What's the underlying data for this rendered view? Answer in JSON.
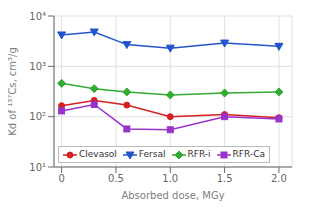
{
  "chart_data": {
    "type": "line",
    "x": [
      0,
      0.3,
      0.6,
      1.0,
      1.5,
      2.0
    ],
    "series": [
      {
        "name": "Clevasol",
        "color": "#d42020",
        "marker": "circle",
        "values": [
          165,
          210,
          170,
          100,
          110,
          95
        ]
      },
      {
        "name": "Fersal",
        "color": "#2255cc",
        "marker": "triangle-down",
        "values": [
          4200,
          4800,
          2700,
          2300,
          2900,
          2500
        ]
      },
      {
        "name": "RFR-i",
        "color": "#33aa33",
        "marker": "diamond",
        "values": [
          460,
          360,
          310,
          270,
          295,
          310
        ]
      },
      {
        "name": "RFR-Ca",
        "color": "#9933cc",
        "marker": "square",
        "values": [
          130,
          175,
          57,
          55,
          100,
          90
        ]
      }
    ],
    "xlabel": "Absorbed dose, MGy",
    "ylabel": "Kd of ¹³⁷Cs, cm³/g",
    "xlim": [
      -0.07,
      2.12
    ],
    "xticks": [
      0,
      0.5,
      {
        "value": 1.0,
        "label": "1.0"
      },
      1.5,
      {
        "value": 2.0,
        "label": "2.0"
      }
    ],
    "ylim": [
      10,
      10000
    ],
    "yticks": [
      {
        "value": 10,
        "label": "10¹"
      },
      {
        "value": 100,
        "label": "10²"
      },
      {
        "value": 1000,
        "label": "10³"
      },
      {
        "value": 10000,
        "label": "10⁴"
      }
    ],
    "log": "y",
    "grid": true,
    "legend": "lower left"
  }
}
